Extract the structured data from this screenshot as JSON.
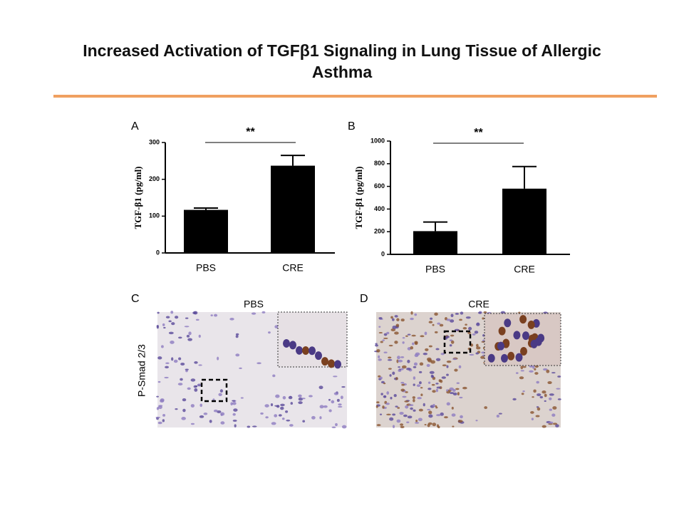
{
  "slide": {
    "title": "Increased Activation of TGFβ1 Signaling in Lung Tissue of Allergic Asthma",
    "panels": {
      "c": "C",
      "d": "D"
    },
    "image_labels": {
      "c": "PBS",
      "d": "CRE"
    },
    "row_label": "P-Smad 2/3"
  },
  "chart_data": [
    {
      "type": "bar",
      "panel": "A",
      "categories": [
        "PBS",
        "CRE"
      ],
      "values": [
        117,
        237
      ],
      "errors": [
        5,
        28
      ],
      "color": "#000000",
      "y_label": "TGF-β1 (pg/ml)",
      "ylim": [
        0,
        300
      ],
      "yticks": [
        0,
        100,
        200,
        300
      ],
      "significance": "**"
    },
    {
      "type": "bar",
      "panel": "B",
      "categories": [
        "PBS",
        "CRE"
      ],
      "values": [
        205,
        580
      ],
      "errors": [
        80,
        195
      ],
      "color": "#000000",
      "y_label": "TGF-β1 (pg/ml)",
      "ylim": [
        0,
        1000
      ],
      "yticks": [
        0,
        200,
        400,
        600,
        800,
        1000
      ],
      "significance": "**"
    }
  ]
}
